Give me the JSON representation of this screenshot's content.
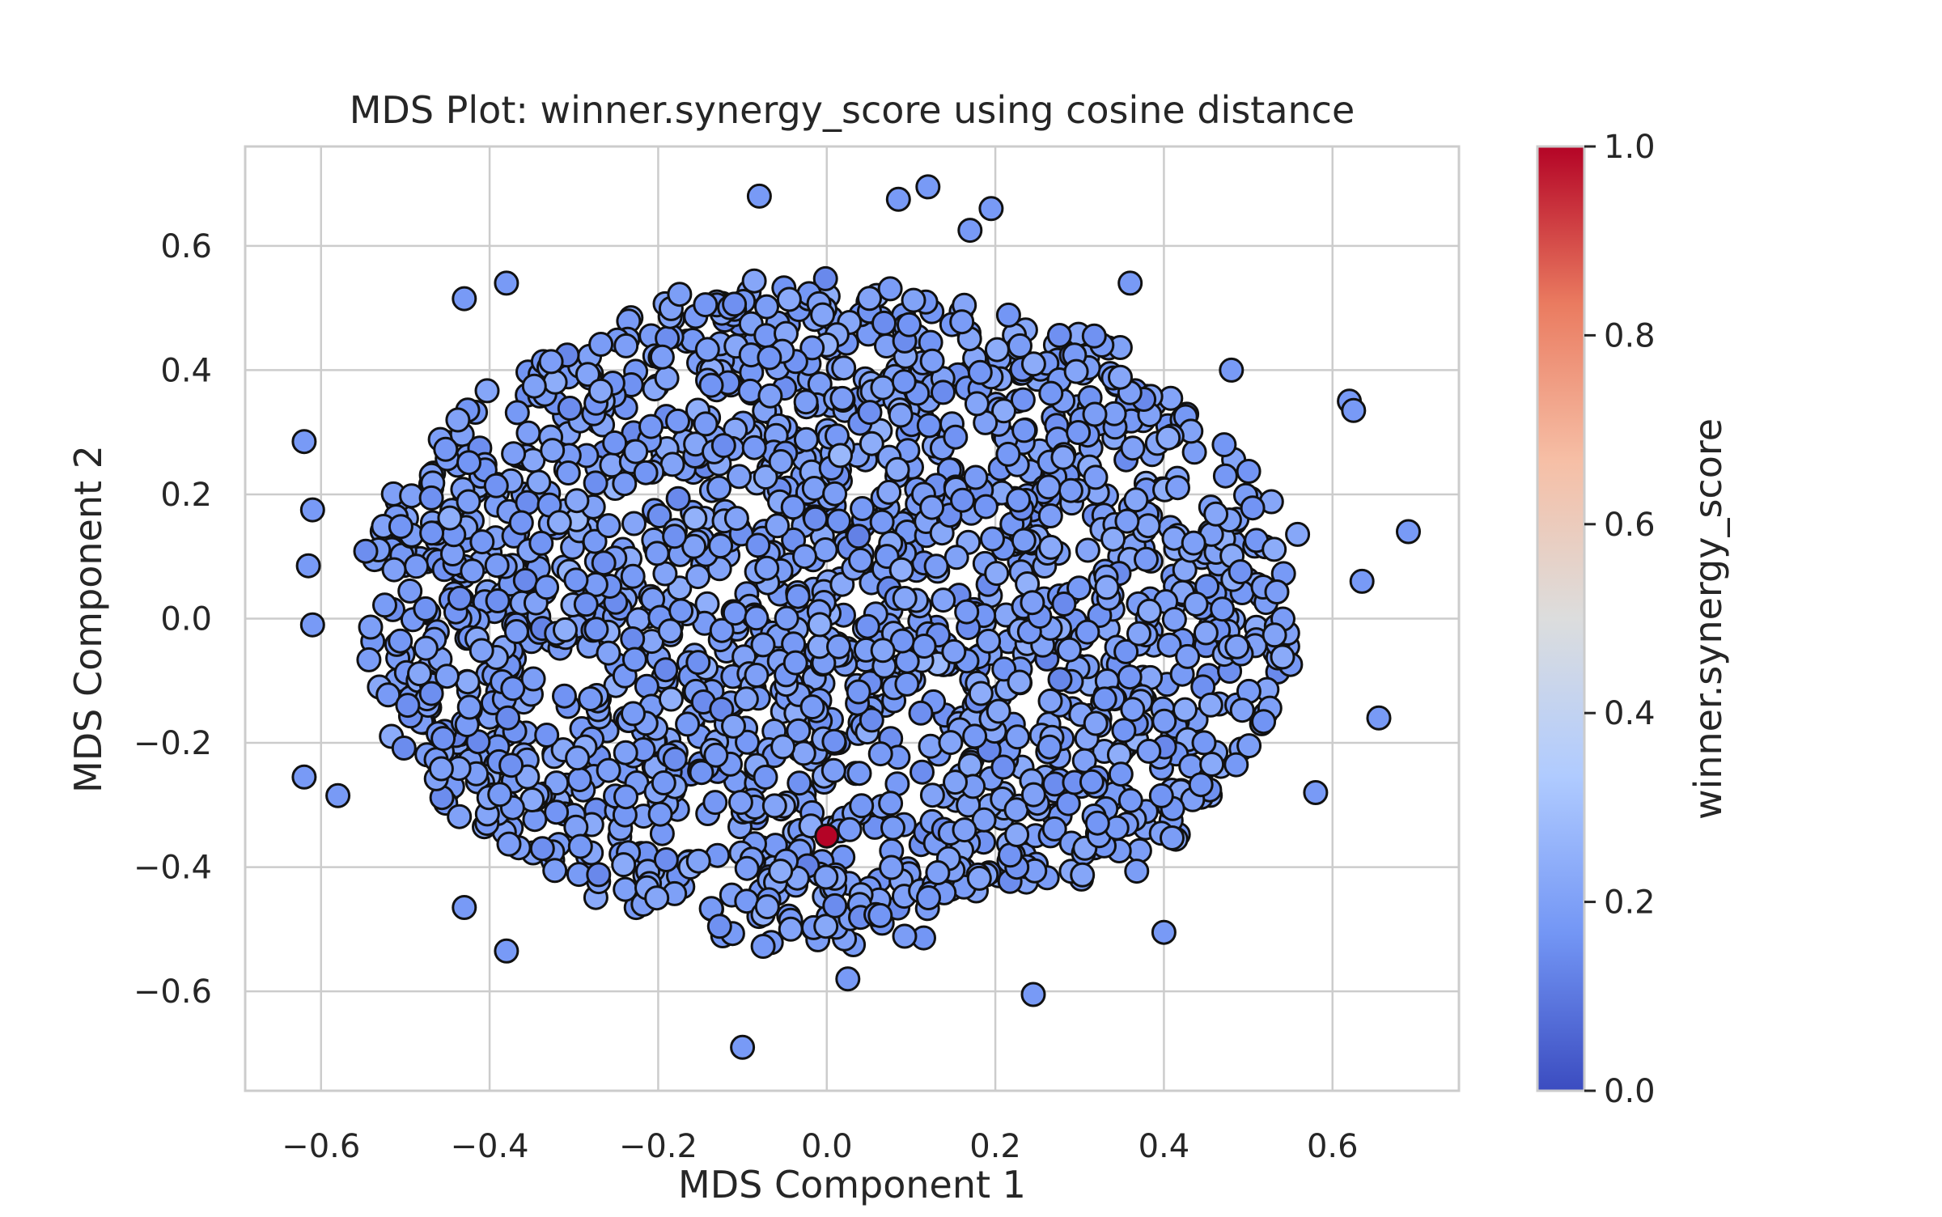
{
  "chart_data": {
    "type": "scatter",
    "title": "MDS Plot: winner.synergy_score using cosine distance",
    "xlabel": "MDS Component 1",
    "ylabel": "MDS Component 2",
    "xlim": [
      -0.69,
      0.75
    ],
    "ylim": [
      -0.76,
      0.76
    ],
    "x_ticks": [
      -0.6,
      -0.4,
      -0.2,
      0.0,
      0.2,
      0.4,
      0.6
    ],
    "y_ticks": [
      -0.6,
      -0.4,
      -0.2,
      0.0,
      0.2,
      0.4,
      0.6
    ],
    "x_tick_labels": [
      "−0.6",
      "−0.4",
      "−0.2",
      "0.0",
      "0.2",
      "0.4",
      "0.6"
    ],
    "y_tick_labels": [
      "−0.6",
      "−0.4",
      "−0.2",
      "0.0",
      "0.2",
      "0.4",
      "0.6"
    ],
    "grid": true,
    "colormap": "coolwarm",
    "color_stops": [
      "#3b4cc0",
      "#7396f5",
      "#b0cbff",
      "#dcdddd",
      "#f6bfa6",
      "#ea7b60",
      "#b40426"
    ],
    "marker_edge_color": "#111111",
    "colorbar": {
      "label": "winner.synergy_score",
      "range": [
        0.0,
        1.0
      ],
      "ticks": [
        0.0,
        0.2,
        0.4,
        0.6,
        0.8,
        1.0
      ],
      "tick_labels": [
        "0.0",
        "0.2",
        "0.4",
        "0.6",
        "0.8",
        "1.0"
      ]
    },
    "points": [
      {
        "x": 0.0,
        "y": -0.35,
        "c": 1.0
      },
      {
        "x": 0.69,
        "y": 0.14,
        "c": 0.18
      },
      {
        "x": 0.655,
        "y": -0.16,
        "c": 0.18
      },
      {
        "x": -0.62,
        "y": 0.285,
        "c": 0.18
      },
      {
        "x": -0.62,
        "y": -0.255,
        "c": 0.18
      },
      {
        "x": -0.61,
        "y": 0.175,
        "c": 0.18
      },
      {
        "x": -0.615,
        "y": 0.085,
        "c": 0.18
      },
      {
        "x": -0.61,
        "y": -0.01,
        "c": 0.18
      },
      {
        "x": -0.58,
        "y": -0.285,
        "c": 0.18
      },
      {
        "x": 0.12,
        "y": 0.695,
        "c": 0.18
      },
      {
        "x": -0.08,
        "y": 0.68,
        "c": 0.18
      },
      {
        "x": 0.085,
        "y": 0.675,
        "c": 0.18
      },
      {
        "x": 0.195,
        "y": 0.66,
        "c": 0.18
      },
      {
        "x": 0.17,
        "y": 0.625,
        "c": 0.18
      },
      {
        "x": -0.1,
        "y": -0.69,
        "c": 0.18
      },
      {
        "x": 0.245,
        "y": -0.605,
        "c": 0.18
      },
      {
        "x": 0.62,
        "y": 0.35,
        "c": 0.18
      },
      {
        "x": 0.625,
        "y": 0.335,
        "c": 0.18
      },
      {
        "x": 0.635,
        "y": 0.06,
        "c": 0.18
      },
      {
        "x": -0.43,
        "y": -0.465,
        "c": 0.18
      },
      {
        "x": -0.38,
        "y": -0.535,
        "c": 0.18
      },
      {
        "x": 0.4,
        "y": -0.505,
        "c": 0.18
      },
      {
        "x": 0.48,
        "y": 0.4,
        "c": 0.18
      },
      {
        "x": 0.025,
        "y": -0.58,
        "c": 0.18
      },
      {
        "x": -0.43,
        "y": 0.515,
        "c": 0.18
      },
      {
        "x": -0.38,
        "y": 0.54,
        "c": 0.18
      },
      {
        "x": 0.36,
        "y": 0.54,
        "c": 0.18
      },
      {
        "x": 0.58,
        "y": -0.28,
        "c": 0.18
      }
    ]
  }
}
